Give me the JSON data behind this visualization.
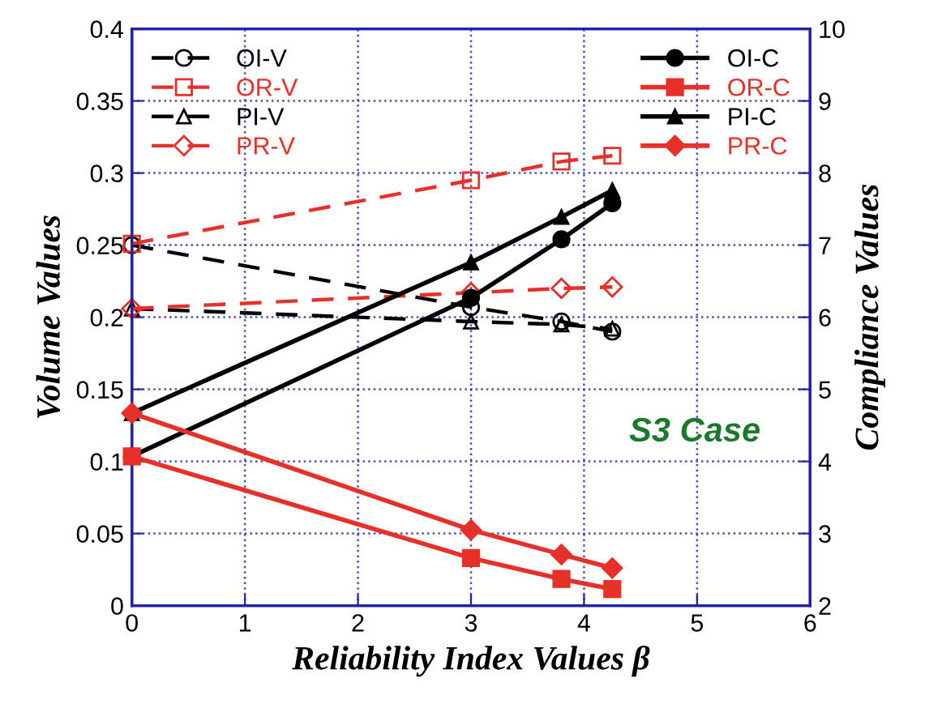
{
  "chart_data": {
    "type": "line",
    "xlabel": "Reliability Index Values β",
    "ylabel": "Volume Values",
    "y2label": "Compliance Values",
    "annotations": [
      "S3 Case"
    ],
    "x": [
      0,
      3,
      3.8,
      4.25
    ],
    "xlim": [
      0,
      6
    ],
    "xticks": [
      0,
      1,
      2,
      3,
      4,
      5,
      6
    ],
    "ylim": [
      0,
      0.4
    ],
    "yticks": [
      0,
      0.05,
      0.1,
      0.15,
      0.2,
      0.25,
      0.3,
      0.35,
      0.4
    ],
    "y2lim": [
      2,
      10
    ],
    "y2ticks": [
      2,
      3,
      4,
      5,
      6,
      7,
      8,
      9,
      10
    ],
    "grid": true,
    "legend": "top",
    "series": [
      {
        "name": "OI-V",
        "color": "#000000",
        "marker": "circle",
        "line_style": "dashed",
        "values": [
          0.25,
          0.207,
          0.197,
          0.19
        ]
      },
      {
        "name": "OR-V",
        "color": "#e8302a",
        "marker": "square",
        "line_style": "dashed",
        "values": [
          0.251,
          0.295,
          0.308,
          0.312
        ]
      },
      {
        "name": "PI-V",
        "color": "#000000",
        "marker": "triangle",
        "line_style": "dashed",
        "values": [
          0.206,
          0.197,
          0.195,
          0.192
        ]
      },
      {
        "name": "PR-V",
        "color": "#e8302a",
        "marker": "diamond",
        "line_style": "dashed",
        "values": [
          0.206,
          0.217,
          0.22,
          0.221
        ]
      },
      {
        "name": "OI-C",
        "color": "#000000",
        "marker": "circle",
        "line_style": "solid",
        "axis": "y2",
        "values": [
          4.07,
          6.27,
          7.08,
          7.58
        ]
      },
      {
        "name": "OR-C",
        "color": "#e8302a",
        "marker": "square",
        "line_style": "solid",
        "axis": "y2",
        "values": [
          4.07,
          2.66,
          2.37,
          2.23
        ]
      },
      {
        "name": "PI-C",
        "color": "#000000",
        "marker": "triangle",
        "line_style": "solid",
        "axis": "y2",
        "values": [
          4.67,
          6.76,
          7.39,
          7.76
        ]
      },
      {
        "name": "PR-C",
        "color": "#e8302a",
        "marker": "diamond",
        "line_style": "solid",
        "axis": "y2",
        "values": [
          4.67,
          3.05,
          2.71,
          2.52
        ]
      }
    ]
  }
}
